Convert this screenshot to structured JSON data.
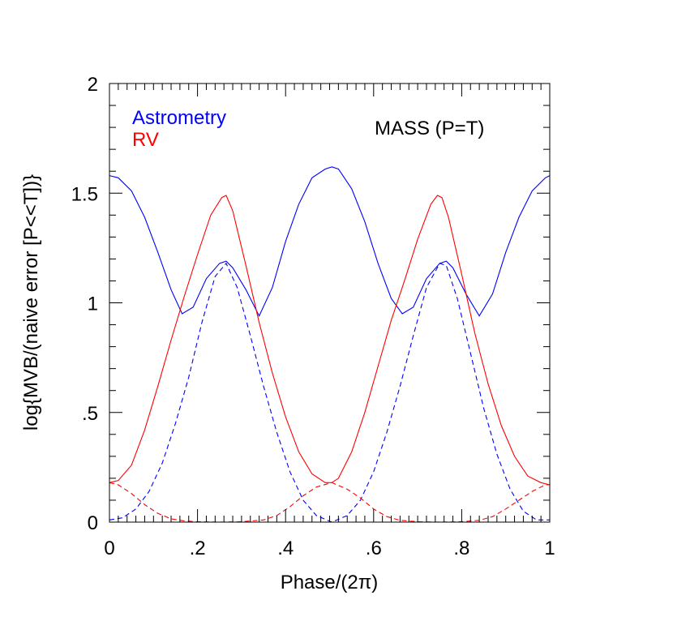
{
  "chart_data": {
    "type": "line",
    "title": "",
    "annotation": "MASS (P=T)",
    "xlabel": "Phase/(2π)",
    "ylabel": "log{MVB/(naive error [P<<T])}",
    "xlim": [
      0,
      1
    ],
    "ylim": [
      0,
      2
    ],
    "x_ticks": [
      {
        "value": 0,
        "label": "0"
      },
      {
        "value": 0.2,
        "label": ".2"
      },
      {
        "value": 0.4,
        "label": ".4"
      },
      {
        "value": 0.6,
        "label": ".6"
      },
      {
        "value": 0.8,
        "label": ".8"
      },
      {
        "value": 1,
        "label": "1"
      }
    ],
    "y_ticks": [
      {
        "value": 0,
        "label": "0"
      },
      {
        "value": 0.5,
        "label": ".5"
      },
      {
        "value": 1,
        "label": "1"
      },
      {
        "value": 1.5,
        "label": "1.5"
      },
      {
        "value": 2,
        "label": "2"
      }
    ],
    "grid": false,
    "legend_position": "top-left",
    "legend": [
      {
        "label": "Astrometry",
        "color": "#0000ff"
      },
      {
        "label": "RV",
        "color": "#ff0000"
      }
    ],
    "series": [
      {
        "color": "#0000ff",
        "dash": "solid",
        "x": [
          0,
          0.02,
          0.05,
          0.08,
          0.11,
          0.14,
          0.165,
          0.19,
          0.22,
          0.25,
          0.265,
          0.28,
          0.31,
          0.34,
          0.37,
          0.4,
          0.43,
          0.46,
          0.49,
          0.505,
          0.52,
          0.55,
          0.58,
          0.61,
          0.64,
          0.665,
          0.69,
          0.72,
          0.75,
          0.765,
          0.78,
          0.81,
          0.84,
          0.87,
          0.9,
          0.93,
          0.96,
          0.99,
          1.0
        ],
        "y": [
          1.58,
          1.57,
          1.51,
          1.39,
          1.23,
          1.06,
          0.95,
          0.98,
          1.11,
          1.18,
          1.19,
          1.16,
          1.06,
          0.94,
          1.07,
          1.28,
          1.45,
          1.57,
          1.61,
          1.62,
          1.61,
          1.52,
          1.37,
          1.18,
          1.02,
          0.95,
          0.98,
          1.11,
          1.18,
          1.19,
          1.16,
          1.04,
          0.94,
          1.04,
          1.23,
          1.39,
          1.51,
          1.57,
          1.58
        ]
      },
      {
        "color": "#0000ff",
        "dash": "dashed",
        "x": [
          0,
          0.03,
          0.06,
          0.09,
          0.12,
          0.15,
          0.18,
          0.21,
          0.24,
          0.265,
          0.29,
          0.32,
          0.35,
          0.38,
          0.41,
          0.44,
          0.47,
          0.505,
          0.54,
          0.57,
          0.6,
          0.63,
          0.66,
          0.69,
          0.72,
          0.75,
          0.765,
          0.79,
          0.82,
          0.85,
          0.88,
          0.91,
          0.94,
          0.97,
          1.0
        ],
        "y": [
          0.01,
          0.02,
          0.06,
          0.14,
          0.27,
          0.45,
          0.66,
          0.91,
          1.12,
          1.18,
          1.07,
          0.85,
          0.62,
          0.41,
          0.23,
          0.1,
          0.03,
          0.0,
          0.03,
          0.1,
          0.23,
          0.41,
          0.62,
          0.85,
          1.07,
          1.18,
          1.17,
          1.02,
          0.77,
          0.52,
          0.31,
          0.15,
          0.05,
          0.01,
          0.01
        ]
      },
      {
        "color": "#ff0000",
        "dash": "solid",
        "x": [
          0,
          0.02,
          0.05,
          0.08,
          0.11,
          0.14,
          0.17,
          0.2,
          0.23,
          0.255,
          0.265,
          0.28,
          0.31,
          0.34,
          0.37,
          0.4,
          0.43,
          0.46,
          0.49,
          0.505,
          0.52,
          0.55,
          0.58,
          0.61,
          0.64,
          0.67,
          0.7,
          0.73,
          0.745,
          0.755,
          0.77,
          0.8,
          0.83,
          0.86,
          0.89,
          0.92,
          0.95,
          0.98,
          1.0
        ],
        "y": [
          0.18,
          0.19,
          0.26,
          0.42,
          0.62,
          0.83,
          1.03,
          1.22,
          1.4,
          1.48,
          1.49,
          1.42,
          1.17,
          0.91,
          0.68,
          0.48,
          0.32,
          0.22,
          0.18,
          0.18,
          0.2,
          0.32,
          0.5,
          0.71,
          0.92,
          1.1,
          1.29,
          1.45,
          1.49,
          1.48,
          1.39,
          1.13,
          0.86,
          0.63,
          0.44,
          0.3,
          0.21,
          0.18,
          0.17
        ]
      },
      {
        "color": "#ff0000",
        "dash": "dashed",
        "x": [
          0,
          0.02,
          0.05,
          0.08,
          0.11,
          0.14,
          0.17,
          0.2,
          0.25,
          0.3,
          0.35,
          0.38,
          0.41,
          0.44,
          0.47,
          0.505,
          0.54,
          0.57,
          0.6,
          0.63,
          0.66,
          0.7,
          0.75,
          0.8,
          0.84,
          0.87,
          0.9,
          0.93,
          0.96,
          0.99,
          1.0
        ],
        "y": [
          0.18,
          0.17,
          0.13,
          0.08,
          0.04,
          0.015,
          0.005,
          0.002,
          0.0,
          0.002,
          0.01,
          0.03,
          0.07,
          0.12,
          0.16,
          0.18,
          0.15,
          0.11,
          0.06,
          0.025,
          0.008,
          0.002,
          0.0,
          0.002,
          0.008,
          0.025,
          0.06,
          0.1,
          0.14,
          0.17,
          0.17
        ]
      }
    ]
  }
}
